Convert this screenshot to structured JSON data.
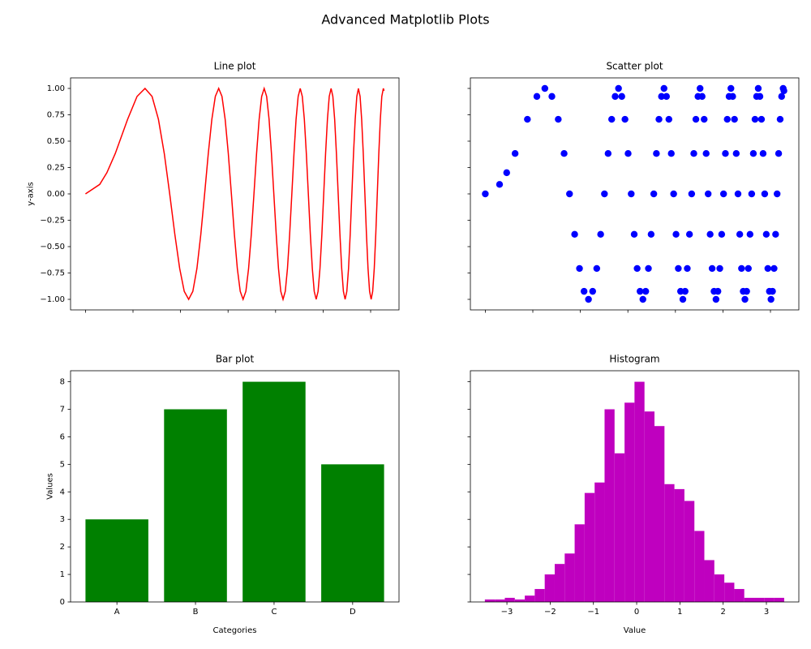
{
  "title": "Advanced Matplotlib Plots",
  "chart_data": [
    {
      "type": "line",
      "title": "Line plot",
      "ylabel": "y-axis",
      "color": "red",
      "x": [
        0,
        0.3,
        0.45,
        0.627,
        0.886,
        1.085,
        1.253,
        1.401,
        1.535,
        1.658,
        1.772,
        1.88,
        1.982,
        2.078,
        2.171,
        2.259,
        2.345,
        2.427,
        2.507,
        2.584,
        2.659,
        2.732,
        2.803,
        2.872,
        2.939,
        3.005,
        3.07,
        3.133,
        3.195,
        3.256,
        3.316,
        3.375,
        3.432,
        3.489,
        3.545,
        3.6,
        3.654,
        3.707,
        3.76,
        3.812,
        3.863,
        3.913,
        3.963,
        4.013,
        4.061,
        4.109,
        4.157,
        4.204,
        4.25,
        4.296,
        4.342,
        4.387,
        4.431,
        4.475,
        4.519,
        4.562,
        4.605,
        4.647,
        4.689,
        4.731,
        4.773,
        4.813,
        4.854,
        4.894,
        4.934,
        4.974,
        5.013,
        5.052,
        5.091,
        5.129,
        5.168,
        5.205,
        5.243,
        5.28,
        5.317,
        5.354,
        5.391,
        5.427,
        5.463,
        5.499,
        5.535,
        5.57,
        5.605,
        5.64,
        5.675,
        5.709,
        5.743,
        5.778,
        5.811,
        5.845,
        5.879,
        5.912,
        5.945,
        5.978,
        6.011,
        6.043,
        6.076,
        6.108,
        6.14,
        6.172,
        6.204,
        6.235,
        6.267,
        6.283
      ],
      "values": [
        0,
        0.09,
        0.201,
        0.383,
        0.707,
        0.924,
        1,
        0.924,
        0.707,
        0.383,
        0,
        -0.383,
        -0.707,
        -0.924,
        -1,
        -0.924,
        -0.707,
        -0.383,
        0,
        0.383,
        0.707,
        0.924,
        1,
        0.924,
        0.707,
        0.383,
        0,
        -0.383,
        -0.707,
        -0.924,
        -1,
        -0.924,
        -0.707,
        -0.383,
        0,
        0.383,
        0.707,
        0.924,
        1,
        0.924,
        0.707,
        0.383,
        0,
        -0.383,
        -0.707,
        -0.924,
        -1,
        -0.924,
        -0.707,
        -0.383,
        0,
        0.383,
        0.707,
        0.924,
        1,
        0.924,
        0.707,
        0.383,
        0,
        -0.383,
        -0.707,
        -0.924,
        -1,
        -0.924,
        -0.707,
        -0.383,
        0,
        0.383,
        0.707,
        0.924,
        1,
        0.924,
        0.707,
        0.383,
        0,
        -0.383,
        -0.707,
        -0.924,
        -1,
        -0.924,
        -0.707,
        -0.383,
        0,
        0.383,
        0.707,
        0.924,
        1,
        0.924,
        0.707,
        0.383,
        0,
        -0.383,
        -0.707,
        -0.924,
        -1,
        -0.924,
        -0.707,
        -0.383,
        0,
        0.383,
        0.707,
        0.924,
        1,
        0.978
      ],
      "xlim": [
        -0.314,
        6.597
      ],
      "xticks": [
        0,
        1,
        2,
        3,
        4,
        5,
        6
      ],
      "xticklabels": false,
      "ylim": [
        -1.1,
        1.1
      ],
      "yticks": [
        {
          "value": -1,
          "label": "−1.00"
        },
        {
          "value": -0.75,
          "label": "−0.75"
        },
        {
          "value": -0.5,
          "label": "−0.50"
        },
        {
          "value": -0.25,
          "label": "−0.25"
        },
        {
          "value": 0,
          "label": "0.00"
        },
        {
          "value": 0.25,
          "label": "0.25"
        },
        {
          "value": 0.5,
          "label": "0.50"
        },
        {
          "value": 0.75,
          "label": "0.75"
        },
        {
          "value": 1,
          "label": "1.00"
        }
      ]
    },
    {
      "type": "scatter",
      "title": "Scatter plot",
      "color": "blue",
      "x": [
        0,
        0.3,
        0.45,
        0.627,
        0.886,
        1.085,
        1.253,
        1.401,
        1.535,
        1.658,
        1.772,
        1.88,
        1.982,
        2.078,
        2.171,
        2.259,
        2.345,
        2.427,
        2.507,
        2.584,
        2.659,
        2.732,
        2.803,
        2.872,
        2.939,
        3.005,
        3.07,
        3.133,
        3.195,
        3.256,
        3.316,
        3.375,
        3.432,
        3.489,
        3.545,
        3.6,
        3.654,
        3.707,
        3.76,
        3.812,
        3.863,
        3.913,
        3.963,
        4.013,
        4.061,
        4.109,
        4.157,
        4.204,
        4.25,
        4.296,
        4.342,
        4.387,
        4.431,
        4.475,
        4.519,
        4.562,
        4.605,
        4.647,
        4.689,
        4.731,
        4.773,
        4.813,
        4.854,
        4.894,
        4.934,
        4.974,
        5.013,
        5.052,
        5.091,
        5.129,
        5.168,
        5.205,
        5.243,
        5.28,
        5.317,
        5.354,
        5.391,
        5.427,
        5.463,
        5.499,
        5.535,
        5.57,
        5.605,
        5.64,
        5.675,
        5.709,
        5.743,
        5.778,
        5.811,
        5.845,
        5.879,
        5.912,
        5.945,
        5.978,
        6.011,
        6.043,
        6.076,
        6.108,
        6.14,
        6.172,
        6.204,
        6.235,
        6.267,
        6.283
      ],
      "values": [
        0,
        0.09,
        0.201,
        0.383,
        0.707,
        0.924,
        1,
        0.924,
        0.707,
        0.383,
        0,
        -0.383,
        -0.707,
        -0.924,
        -1,
        -0.924,
        -0.707,
        -0.383,
        0,
        0.383,
        0.707,
        0.924,
        1,
        0.924,
        0.707,
        0.383,
        0,
        -0.383,
        -0.707,
        -0.924,
        -1,
        -0.924,
        -0.707,
        -0.383,
        0,
        0.383,
        0.707,
        0.924,
        1,
        0.924,
        0.707,
        0.383,
        0,
        -0.383,
        -0.707,
        -0.924,
        -1,
        -0.924,
        -0.707,
        -0.383,
        0,
        0.383,
        0.707,
        0.924,
        1,
        0.924,
        0.707,
        0.383,
        0,
        -0.383,
        -0.707,
        -0.924,
        -1,
        -0.924,
        -0.707,
        -0.383,
        0,
        0.383,
        0.707,
        0.924,
        1,
        0.924,
        0.707,
        0.383,
        0,
        -0.383,
        -0.707,
        -0.924,
        -1,
        -0.924,
        -0.707,
        -0.383,
        0,
        0.383,
        0.707,
        0.924,
        1,
        0.924,
        0.707,
        0.383,
        0,
        -0.383,
        -0.707,
        -0.924,
        -1,
        -0.924,
        -0.707,
        -0.383,
        0,
        0.383,
        0.707,
        0.924,
        1,
        0.978
      ],
      "xlim": [
        -0.314,
        6.597
      ],
      "xticks": [
        0,
        1,
        2,
        3,
        4,
        5,
        6
      ],
      "xticklabels": false,
      "ylim": [
        -1.1,
        1.1
      ],
      "yticks": [
        -1,
        -0.75,
        -0.5,
        -0.25,
        0,
        0.25,
        0.5,
        0.75,
        1
      ],
      "yticklabels": false
    },
    {
      "type": "bar",
      "title": "Bar plot",
      "xlabel": "Categories",
      "ylabel": "Values",
      "color": "green",
      "categories": [
        "A",
        "B",
        "C",
        "D"
      ],
      "values": [
        3,
        7,
        8,
        5
      ],
      "ylim": [
        0,
        8.4
      ],
      "yticks": [
        0,
        1,
        2,
        3,
        4,
        5,
        6,
        7,
        8
      ]
    },
    {
      "type": "histogram",
      "title": "Histogram",
      "xlabel": "Value",
      "color": "#bf00bf",
      "bins": [
        -3.51,
        -3.279,
        -3.049,
        -2.818,
        -2.587,
        -2.357,
        -2.126,
        -1.895,
        -1.664,
        -1.434,
        -1.203,
        -0.972,
        -0.742,
        -0.511,
        -0.28,
        -0.05,
        0.181,
        0.412,
        0.643,
        0.873,
        1.104,
        1.335,
        1.565,
        1.796,
        2.027,
        2.258,
        2.488,
        2.719,
        2.95,
        3.18,
        3.411
      ],
      "values": [
        0.09,
        0.09,
        0.15,
        0.09,
        0.23,
        0.47,
        1.0,
        1.38,
        1.76,
        2.82,
        3.96,
        4.34,
        7.0,
        5.4,
        7.24,
        8.0,
        6.92,
        6.39,
        4.28,
        4.1,
        3.67,
        2.58,
        1.52,
        1.0,
        0.7,
        0.47,
        0.15,
        0.15,
        0.15,
        0.15
      ],
      "xlim": [
        -3.845,
        3.75
      ],
      "xticks": [
        {
          "value": -3,
          "label": "−3"
        },
        {
          "value": -2,
          "label": "−2"
        },
        {
          "value": -1,
          "label": "−1"
        },
        0,
        1,
        2,
        3
      ],
      "ylim": [
        0,
        8.4
      ],
      "yticks": [
        0,
        1,
        2,
        3,
        4,
        5,
        6,
        7,
        8
      ],
      "yticklabels": false
    }
  ]
}
